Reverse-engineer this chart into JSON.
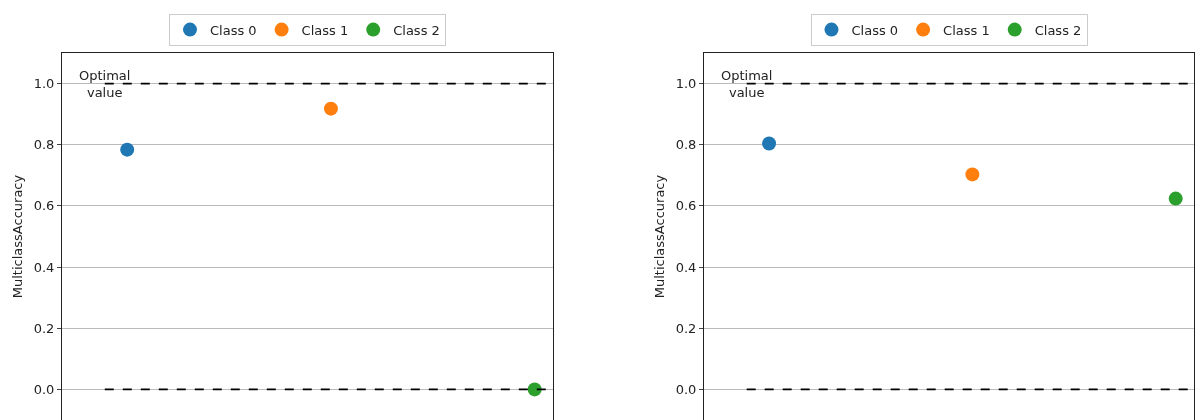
{
  "chart_data": [
    {
      "type": "scatter",
      "categories": [
        null,
        null,
        null
      ],
      "ylabel": "MulticlassAccuracy",
      "ylim": [
        -0.1,
        1.1
      ],
      "yticks": [
        {
          "value": 0,
          "label": "0.0"
        },
        {
          "value": 0.2,
          "label": "0.2"
        },
        {
          "value": 0.4,
          "label": "0.4"
        },
        {
          "value": 0.6,
          "label": "0.6"
        },
        {
          "value": 0.8,
          "label": "0.8"
        },
        {
          "value": 1,
          "label": "1.0"
        }
      ],
      "grid": "y",
      "legend": "top",
      "marker": "circle",
      "tick_labels": "y",
      "series": [
        {
          "name": "Class 0",
          "color": "#1f77b4",
          "values": [
            0.784,
            null,
            null
          ]
        },
        {
          "name": "Class 1",
          "color": "#ff7f0e",
          "values": [
            null,
            0.918,
            null
          ]
        },
        {
          "name": "Class 2",
          "color": "#2ca02c",
          "values": [
            null,
            null,
            0
          ]
        }
      ],
      "ref_lines": [
        {
          "axis": "y",
          "value": 1,
          "label": "Optimal\nvalue",
          "line_style": "dashed",
          "color": "#000000"
        },
        {
          "axis": "y",
          "value": 0,
          "line_style": "dashed",
          "color": "#000000"
        }
      ]
    },
    {
      "type": "scatter",
      "categories": [
        null,
        null,
        null
      ],
      "ylabel": "MulticlassAccuracy",
      "ylim": [
        -0.1,
        1.1
      ],
      "yticks": [
        {
          "value": 0,
          "label": "0.0"
        },
        {
          "value": 0.2,
          "label": "0.2"
        },
        {
          "value": 0.4,
          "label": "0.4"
        },
        {
          "value": 0.6,
          "label": "0.6"
        },
        {
          "value": 0.8,
          "label": "0.8"
        },
        {
          "value": 1,
          "label": "1.0"
        }
      ],
      "grid": "y",
      "legend": "top",
      "marker": "circle",
      "tick_labels": "y",
      "series": [
        {
          "name": "Class 0",
          "color": "#1f77b4",
          "values": [
            0.804,
            null,
            null
          ]
        },
        {
          "name": "Class 1",
          "color": "#ff7f0e",
          "values": [
            null,
            0.703,
            null
          ]
        },
        {
          "name": "Class 2",
          "color": "#2ca02c",
          "values": [
            null,
            null,
            0.624
          ]
        }
      ],
      "ref_lines": [
        {
          "axis": "y",
          "value": 1,
          "label": "Optimal\nvalue",
          "line_style": "dashed",
          "color": "#000000"
        },
        {
          "axis": "y",
          "value": 0,
          "line_style": "dashed",
          "color": "#000000"
        }
      ]
    }
  ]
}
